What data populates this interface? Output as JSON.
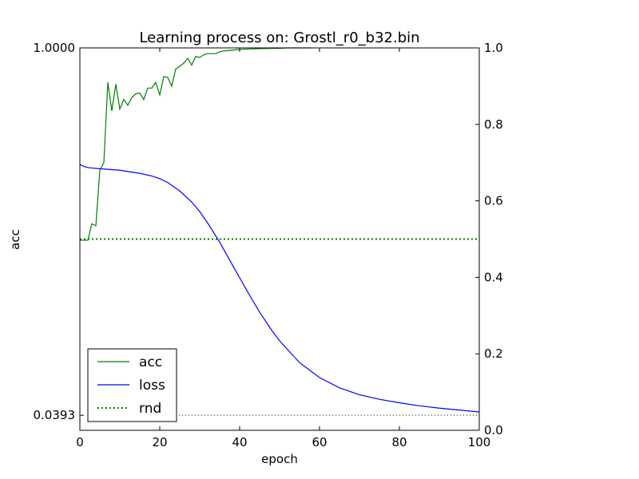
{
  "chart_data": {
    "type": "line",
    "title": "Learning process on: Grostl_r0_b32.bin",
    "xlabel": "epoch",
    "ylabel_left": "acc",
    "xlim": [
      0,
      100
    ],
    "ylim_left": [
      0,
      1
    ],
    "ylim_right": [
      0,
      1
    ],
    "x_ticks": [
      "0",
      "20",
      "40",
      "60",
      "80",
      "100"
    ],
    "left_ticks": [
      {
        "value": 1.0,
        "label": "1.0000"
      },
      {
        "value": 0.0393,
        "label": "0.0393"
      }
    ],
    "right_ticks": [
      "0.0",
      "0.2",
      "0.4",
      "0.6",
      "0.8",
      "1.0"
    ],
    "grid": false,
    "legend_position": "lower-left",
    "series": [
      {
        "name": "acc",
        "axis": "left",
        "color": "#008000",
        "style": "solid",
        "x": [
          0,
          1,
          2,
          3,
          4,
          5,
          6,
          7,
          8,
          9,
          10,
          11,
          12,
          13,
          14,
          15,
          16,
          17,
          18,
          19,
          20,
          21,
          22,
          23,
          24,
          25,
          26,
          27,
          28,
          29,
          30,
          31,
          32,
          33,
          34,
          35,
          36,
          37,
          38,
          39,
          40,
          42,
          45,
          48,
          50,
          52,
          55,
          58
        ],
        "y": [
          0.497,
          0.497,
          0.497,
          0.54,
          0.535,
          0.68,
          0.7,
          0.91,
          0.835,
          0.905,
          0.84,
          0.865,
          0.85,
          0.87,
          0.88,
          0.882,
          0.865,
          0.895,
          0.895,
          0.91,
          0.877,
          0.925,
          0.923,
          0.9,
          0.945,
          0.952,
          0.96,
          0.973,
          0.955,
          0.978,
          0.975,
          0.982,
          0.985,
          0.985,
          0.985,
          0.99,
          0.992,
          0.993,
          0.994,
          0.995,
          0.996,
          0.997,
          0.998,
          0.999,
          0.999,
          1.0,
          1.0,
          1.0
        ]
      },
      {
        "name": "loss",
        "axis": "right",
        "color": "#0000ff",
        "style": "solid",
        "x": [
          0,
          1,
          2,
          5,
          10,
          15,
          18,
          20,
          22,
          25,
          28,
          30,
          32,
          35,
          38,
          40,
          42,
          45,
          48,
          50,
          55,
          60,
          65,
          70,
          75,
          80,
          85,
          90,
          95,
          100
        ],
        "y": [
          0.695,
          0.69,
          0.687,
          0.684,
          0.68,
          0.672,
          0.665,
          0.658,
          0.648,
          0.626,
          0.597,
          0.572,
          0.542,
          0.492,
          0.436,
          0.399,
          0.362,
          0.309,
          0.262,
          0.234,
          0.177,
          0.138,
          0.111,
          0.093,
          0.081,
          0.072,
          0.064,
          0.058,
          0.053,
          0.048
        ]
      },
      {
        "name": "rnd",
        "axis": "left",
        "color": "#008000",
        "style": "dotted",
        "x": [
          0,
          100
        ],
        "y": [
          0.5,
          0.5
        ]
      }
    ],
    "reference_line": {
      "axis": "left",
      "value": 0.0393,
      "color": "#000000",
      "style": "dotted",
      "x": [
        20,
        100
      ]
    }
  }
}
